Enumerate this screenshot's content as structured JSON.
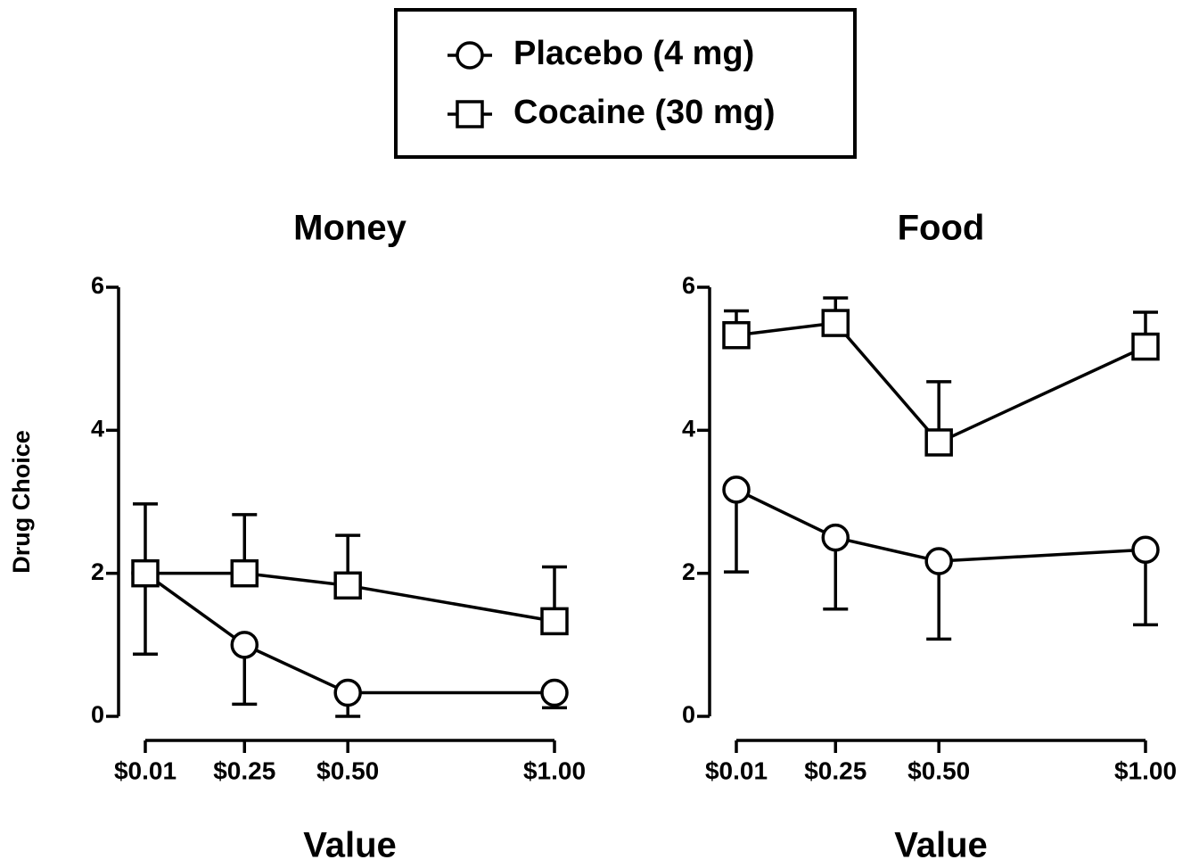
{
  "chart_data": [
    {
      "type": "line",
      "title": "Money",
      "xlabel": "Value",
      "ylabel": "Drug Choice",
      "x": [
        0.01,
        0.25,
        0.5,
        1.0
      ],
      "xlim": [
        0.01,
        1.0
      ],
      "xticks": [
        {
          "value": 0.01,
          "label": "$0.01"
        },
        {
          "value": 0.25,
          "label": "$0.25"
        },
        {
          "value": 0.5,
          "label": "$0.50"
        },
        {
          "value": 1.0,
          "label": "$1.00"
        }
      ],
      "ylim": [
        0,
        6
      ],
      "yticks": [
        0,
        2,
        4,
        6
      ],
      "series": [
        {
          "name": "Placebo (4 mg)",
          "marker": "circle",
          "color": "#000000",
          "values": [
            2.0,
            1.0,
            0.33,
            0.33
          ],
          "errors": [
            1.13,
            0.83,
            0.33,
            0.21
          ],
          "error_direction": "down"
        },
        {
          "name": "Cocaine (30 mg)",
          "marker": "square",
          "color": "#000000",
          "values": [
            2.0,
            2.0,
            1.83,
            1.33
          ],
          "errors": [
            0.97,
            0.82,
            0.7,
            0.76
          ],
          "error_direction": "up"
        }
      ]
    },
    {
      "type": "line",
      "title": "Food",
      "xlabel": "Value",
      "x": [
        0.01,
        0.25,
        0.5,
        1.0
      ],
      "xlim": [
        0.01,
        1.0
      ],
      "xticks": [
        {
          "value": 0.01,
          "label": "$0.01"
        },
        {
          "value": 0.25,
          "label": "$0.25"
        },
        {
          "value": 0.5,
          "label": "$0.50"
        },
        {
          "value": 1.0,
          "label": "$1.00"
        }
      ],
      "ylim": [
        0,
        6
      ],
      "yticks": [
        0,
        2,
        4,
        6
      ],
      "series": [
        {
          "marker": "circle",
          "color": "#000000",
          "values": [
            3.17,
            2.5,
            2.17,
            2.33
          ],
          "errors": [
            1.15,
            1.0,
            1.09,
            1.05
          ],
          "error_direction": "down"
        },
        {
          "marker": "square",
          "color": "#000000",
          "values": [
            5.33,
            5.5,
            3.83,
            5.17
          ],
          "errors": [
            0.34,
            0.35,
            0.85,
            0.48
          ],
          "error_direction": "up"
        }
      ]
    }
  ]
}
